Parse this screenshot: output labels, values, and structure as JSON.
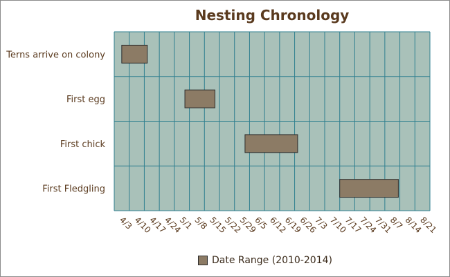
{
  "chart_data": {
    "type": "gantt",
    "title": "Nesting Chronology",
    "x_tick_labels": [
      "4/3",
      "4/10",
      "4/17",
      "4/24",
      "5/1",
      "5/8",
      "5/15",
      "5/22",
      "5/29",
      "6/5",
      "6/12",
      "6/19",
      "6/26",
      "7/3",
      "7/10",
      "7/17",
      "7/24",
      "7/31",
      "8/7",
      "8/14",
      "8/21"
    ],
    "categories": [
      "Terns arrive on colony",
      "First egg",
      "First chick",
      "First Fledgling"
    ],
    "series": [
      {
        "name": "Date Range (2010-2014)",
        "ranges": [
          {
            "category": "Terns arrive on colony",
            "start_week": 0.5,
            "end_week": 2.2
          },
          {
            "category": "First egg",
            "start_week": 4.7,
            "end_week": 6.7
          },
          {
            "category": "First chick",
            "start_week": 8.7,
            "end_week": 12.2
          },
          {
            "category": "First Fledgling",
            "start_week": 15.0,
            "end_week": 18.9
          }
        ]
      }
    ],
    "grid": true,
    "legend_position": "bottom",
    "colors": {
      "plot_background": "#a9c1b9",
      "grid": "#2e7f8f",
      "bar_fill": "#8c7b65",
      "bar_stroke": "#2b2b2b",
      "text": "#5a3a1e"
    }
  }
}
